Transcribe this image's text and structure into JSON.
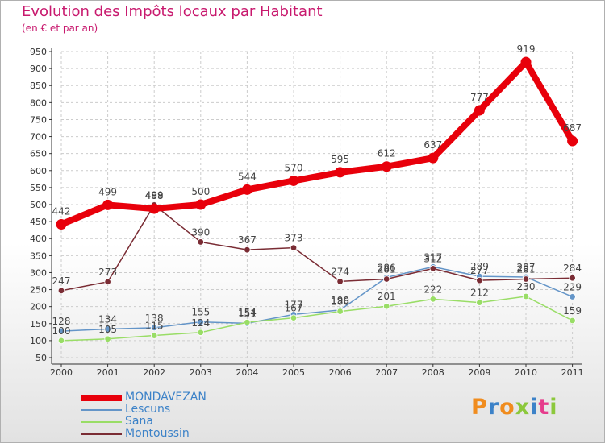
{
  "title": "Evolution des Impôts locaux par Habitant",
  "subtitle": "(en € et par an)",
  "brand": {
    "text": "Proxiti",
    "letter_colors": [
      "#f08c1e",
      "#3c82c8",
      "#f08c1e",
      "#8cc83c",
      "#3c82c8",
      "#e63c8c",
      "#8cc83c"
    ]
  },
  "colors": {
    "title": "#c8196e",
    "axis": "#333333",
    "grid": "#cccccc",
    "label": "#444444"
  },
  "chart_data": {
    "type": "line",
    "title": "Evolution des Impôts locaux par Habitant",
    "subtitle": "(en € et par an)",
    "xlabel": "",
    "ylabel": "",
    "categories": [
      "2000",
      "2001",
      "2002",
      "2003",
      "2004",
      "2005",
      "2006",
      "2007",
      "2008",
      "2009",
      "2010",
      "2011"
    ],
    "ylim": [
      50,
      950
    ],
    "yticks": [
      50,
      100,
      150,
      200,
      250,
      300,
      350,
      400,
      450,
      500,
      550,
      600,
      650,
      700,
      750,
      800,
      850,
      900,
      950
    ],
    "grid": true,
    "legend_position": "bottom-left",
    "series": [
      {
        "name": "MONDAVEZAN",
        "color": "#e8000b",
        "legend_color": "#3c82c8",
        "bold": true,
        "values": [
          442,
          499,
          488,
          500,
          544,
          570,
          595,
          612,
          637,
          777,
          919,
          687
        ]
      },
      {
        "name": "Lescuns",
        "color": "#6495c8",
        "legend_color": "#3c82c8",
        "bold": false,
        "values": [
          128,
          134,
          138,
          155,
          151,
          177,
          190,
          286,
          317,
          289,
          287,
          229
        ]
      },
      {
        "name": "Sana",
        "color": "#99dd66",
        "legend_color": "#3c82c8",
        "bold": false,
        "values": [
          100,
          105,
          115,
          124,
          154,
          167,
          186,
          201,
          222,
          212,
          230,
          159
        ]
      },
      {
        "name": "Montoussin",
        "color": "#7a2c34",
        "legend_color": "#3c82c8",
        "bold": false,
        "values": [
          247,
          273,
          499,
          390,
          367,
          373,
          274,
          281,
          312,
          277,
          281,
          284
        ]
      }
    ]
  }
}
